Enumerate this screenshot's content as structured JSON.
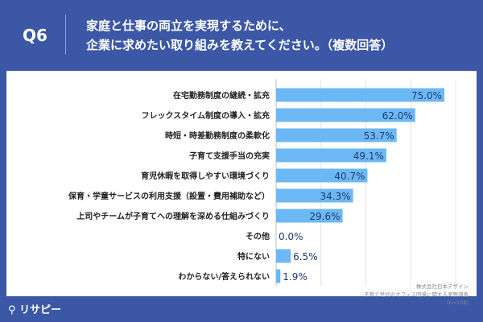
{
  "header": {
    "q": "Q6",
    "title_line1": "家庭と仕事の両立を実現するために、",
    "title_line2": "企業に求めたい取り組みを教えてください。（複数回答）"
  },
  "source": {
    "line1": "株式会社日本デザイン",
    "line2": "子育て世代のオフィス回帰に関する実態調査",
    "line3": "(n=108)"
  },
  "logo": "リサピー",
  "chart_data": {
    "type": "bar",
    "orientation": "horizontal",
    "xlim": [
      0,
      80
    ],
    "grid": true,
    "bar_color": "#6cb8f5",
    "value_color": "#1f3a6e",
    "categories": [
      "在宅勤務制度の継続・拡充",
      "フレックスタイム制度の導入・拡充",
      "時短・時差勤務制度の柔軟化",
      "子育て支援手当の充実",
      "育児休暇を取得しやすい環境づくり",
      "保育・学童サービスの利用支援（設置・費用補助など）",
      "上司やチームが子育てへの理解を深める仕組みづくり",
      "その他",
      "特にない",
      "わからない/答えられない"
    ],
    "values": [
      75.0,
      62.0,
      53.7,
      49.1,
      40.7,
      34.3,
      29.6,
      0.0,
      6.5,
      1.9
    ],
    "labels": [
      "75.0%",
      "62.0%",
      "53.7%",
      "49.1%",
      "40.7%",
      "34.3%",
      "29.6%",
      "0.0%",
      "6.5%",
      "1.9%"
    ]
  }
}
